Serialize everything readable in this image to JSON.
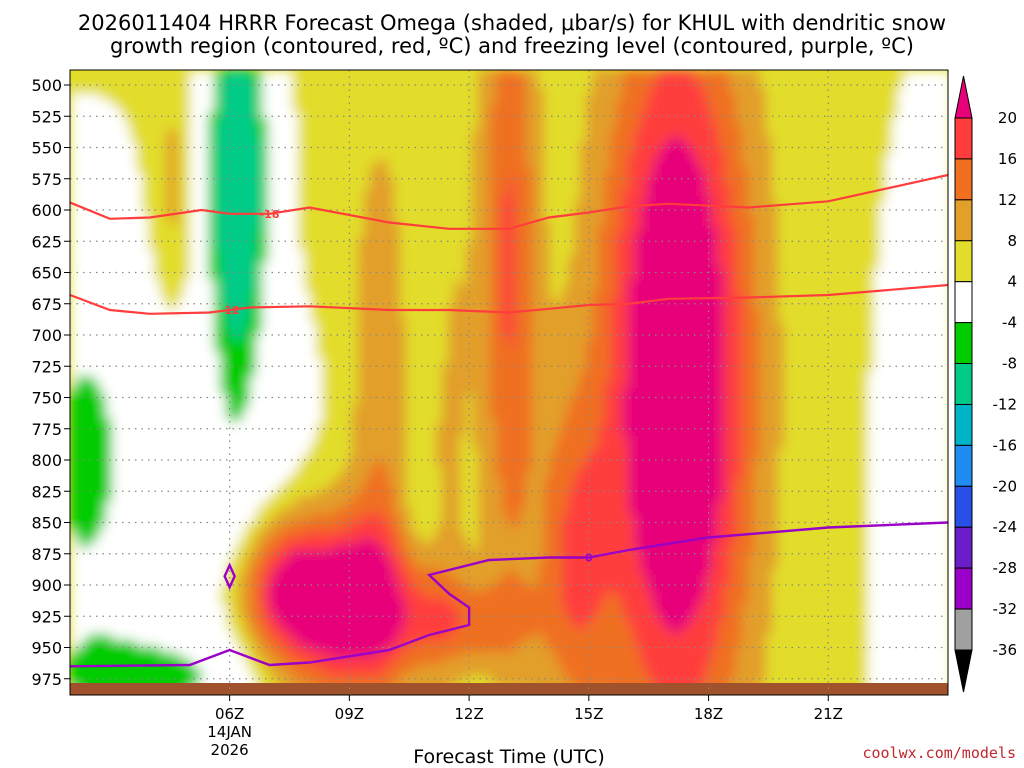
{
  "chart_data": {
    "type": "heatmap",
    "title_line1": "2026011404 HRRR Forecast Omega (shaded, μbar/s) for KHUL with dendritic snow",
    "title_line2": "growth region (contoured, red, ºC) and freezing level (contoured, purple, ºC)",
    "xlabel": "Forecast Time (UTC)",
    "x_range_hours": [
      2,
      24
    ],
    "x_ticks": [
      {
        "hour": 6,
        "label": "06Z",
        "date1": "14JAN",
        "date2": "2026"
      },
      {
        "hour": 9,
        "label": "09Z"
      },
      {
        "hour": 12,
        "label": "12Z"
      },
      {
        "hour": 15,
        "label": "15Z"
      },
      {
        "hour": 18,
        "label": "18Z"
      },
      {
        "hour": 21,
        "label": "21Z"
      }
    ],
    "y_range_hpa": [
      488,
      988
    ],
    "y_ticks": [
      500,
      525,
      550,
      575,
      600,
      625,
      650,
      675,
      700,
      725,
      750,
      775,
      800,
      825,
      850,
      875,
      900,
      925,
      950,
      975
    ],
    "colorbar": {
      "ticks": [
        "20",
        "16",
        "12",
        "8",
        "4",
        "-4",
        "-8",
        "-12",
        "-16",
        "-20",
        "-24",
        "-28",
        "-32",
        "-36"
      ],
      "colors": [
        "#ff3d3d",
        "#f07020",
        "#e29f2a",
        "#e2dd2a",
        "#ffffff",
        "#00cc00",
        "#00cc88",
        "#00b4c8",
        "#1e8cf0",
        "#2850e6",
        "#6a1ec8",
        "#9b00c8",
        "#a0a0a0"
      ],
      "max_color": "#e8007a",
      "min_color": "#000000"
    },
    "omega_levels": [
      4,
      8,
      12,
      16,
      20
    ],
    "omega_colors": [
      "#e2dd2a",
      "#e29f2a",
      "#f07020",
      "#ff3d3d",
      "#e8007a"
    ],
    "neg_levels": [
      -4,
      -8
    ],
    "neg_colors": [
      "#00cc00",
      "#00cc88"
    ],
    "dgz_contours": [
      {
        "label": "-18",
        "color": "#ff3d3d",
        "points": [
          [
            2,
            594
          ],
          [
            3,
            607
          ],
          [
            4,
            606
          ],
          [
            5.3,
            600
          ],
          [
            6,
            603
          ],
          [
            7,
            603
          ],
          [
            8,
            598
          ],
          [
            10,
            610
          ],
          [
            11.5,
            615
          ],
          [
            13,
            615
          ],
          [
            14,
            606
          ],
          [
            15,
            602
          ],
          [
            16,
            597
          ],
          [
            17,
            595
          ],
          [
            19,
            598
          ],
          [
            21,
            593
          ],
          [
            24,
            572
          ]
        ]
      },
      {
        "label": "-12",
        "color": "#ff3d3d",
        "points": [
          [
            2,
            668
          ],
          [
            3,
            680
          ],
          [
            4,
            683
          ],
          [
            5.5,
            682
          ],
          [
            6.5,
            678
          ],
          [
            8,
            677
          ],
          [
            10,
            680
          ],
          [
            11.5,
            680
          ],
          [
            13,
            682
          ],
          [
            14,
            679
          ],
          [
            15,
            676
          ],
          [
            16,
            675
          ],
          [
            17,
            671
          ],
          [
            19,
            670
          ],
          [
            21,
            668
          ],
          [
            24,
            660
          ]
        ]
      }
    ],
    "freezing_contours": [
      {
        "label": "0",
        "color": "#9a00c8",
        "points": [
          [
            2,
            965
          ],
          [
            5,
            964
          ],
          [
            6,
            952
          ],
          [
            7,
            964
          ],
          [
            8,
            962
          ],
          [
            10,
            952
          ],
          [
            11,
            940
          ],
          [
            12,
            932
          ],
          [
            12,
            918
          ],
          [
            11.5,
            907
          ],
          [
            11,
            892
          ],
          [
            12.5,
            880
          ],
          [
            14,
            878
          ],
          [
            15,
            878
          ],
          [
            16,
            872
          ],
          [
            18,
            862
          ],
          [
            21,
            854
          ],
          [
            24,
            850
          ]
        ]
      }
    ],
    "freezing_small_contour": {
      "label": "0",
      "center": [
        6,
        893
      ]
    }
  },
  "credit": "coolwx.com/models"
}
